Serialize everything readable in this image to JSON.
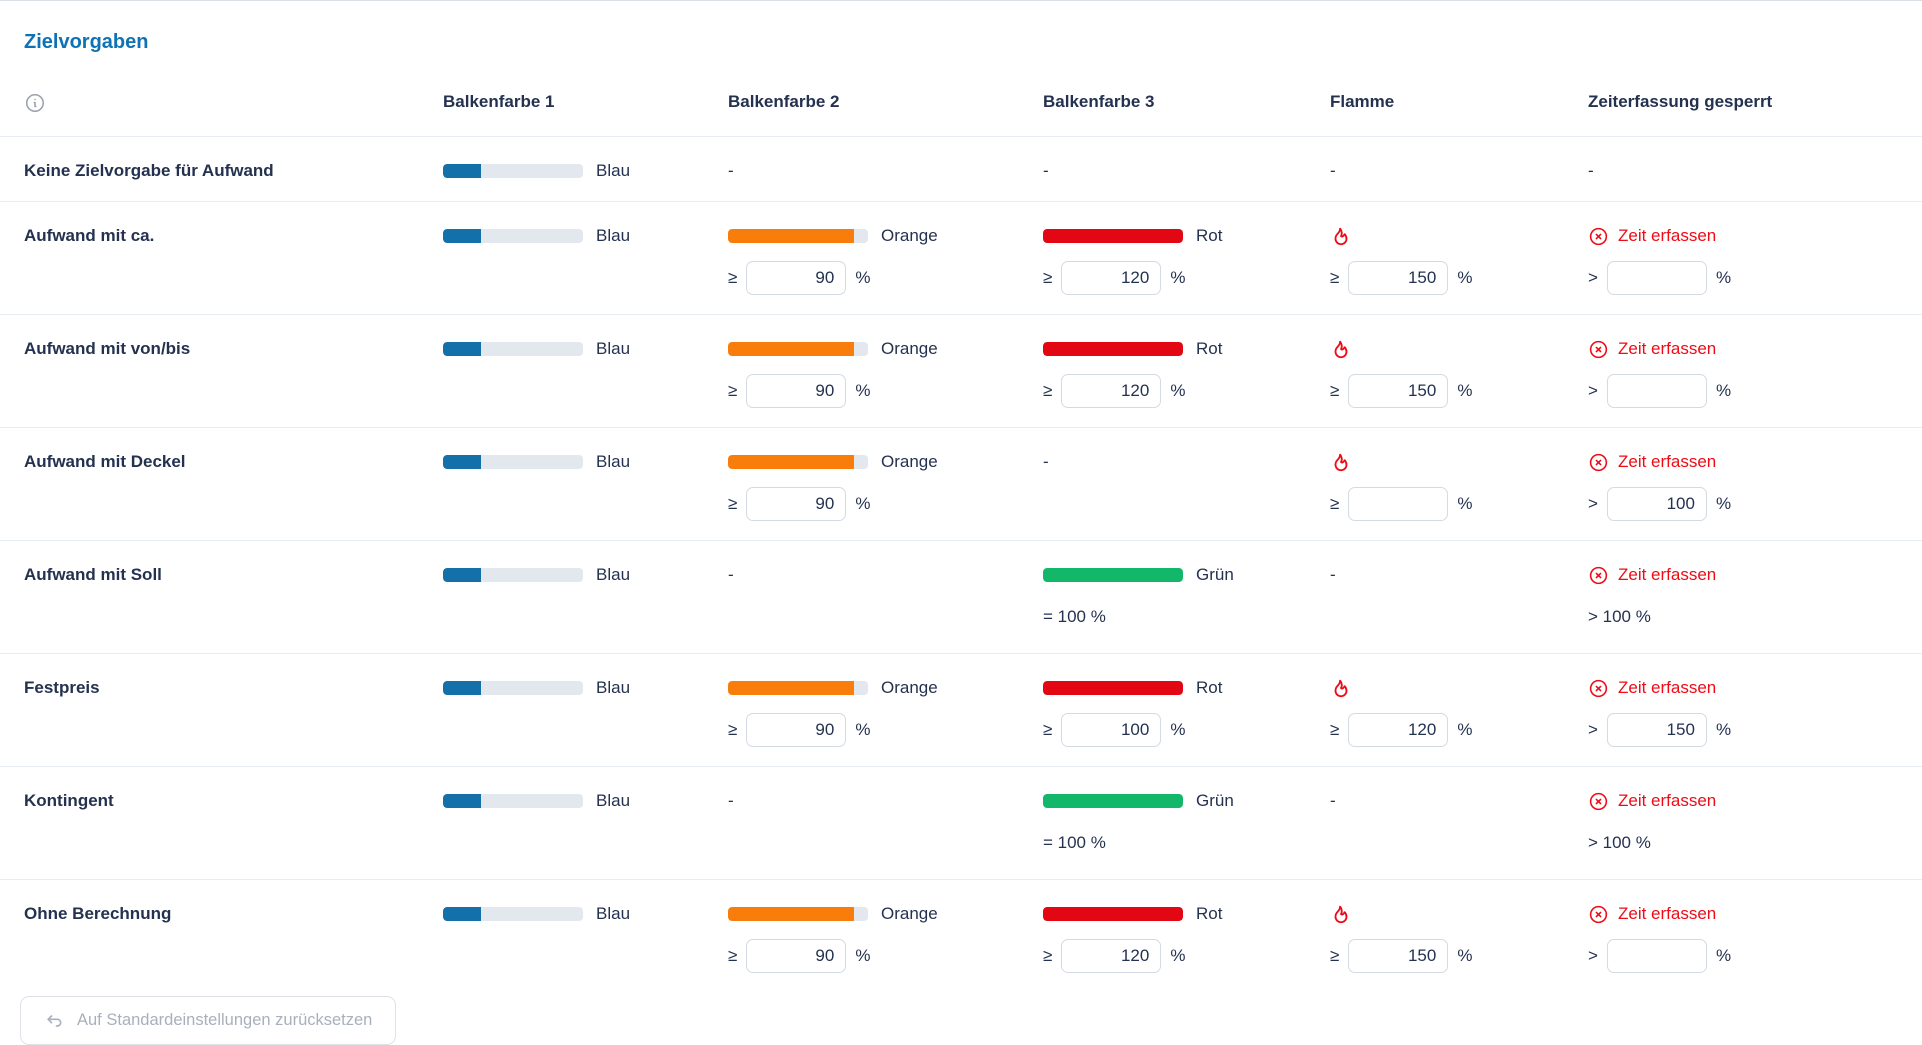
{
  "page": {
    "title": "Zielvorgaben"
  },
  "icons": {
    "info": "info-circle-icon",
    "flame": "flame-icon",
    "time_locked": "circle-x-icon",
    "reset": "undo-arrow-icon"
  },
  "colors": {
    "title_blue": "#0f72b4",
    "text": "#243250",
    "red_text": "#ee0b16",
    "bar_track": "#e3e8ef",
    "bar_blue": "#1470a9",
    "bar_orange": "#f87d0b",
    "bar_red": "#e30613",
    "bar_green": "#12b76a"
  },
  "bars": {
    "blue": {
      "label": "Blau",
      "fill": 0.27
    },
    "orange": {
      "label": "Orange",
      "fill": 0.9
    },
    "red": {
      "label": "Rot",
      "fill": 1
    },
    "green": {
      "label": "Grün",
      "fill": 1
    }
  },
  "table": {
    "headers": [
      "Balkenfarbe 1",
      "Balkenfarbe 2",
      "Balkenfarbe 3",
      "Flamme",
      "Zeiterfassung gesperrt"
    ],
    "time_locked_label": "Zeit erfassen",
    "percent_sign": "%",
    "dash": "-",
    "rows": [
      {
        "name": "Keine Zielvorgabe für Aufwand",
        "bar1": {
          "color": "blue"
        },
        "bar2": null,
        "bar3": null,
        "flame": null,
        "time": null
      },
      {
        "name": "Aufwand mit ca.",
        "bar1": {
          "color": "blue"
        },
        "bar2": {
          "color": "orange",
          "op": "≥",
          "value": "90",
          "input": true
        },
        "bar3": {
          "color": "red",
          "op": "≥",
          "value": "120",
          "input": true
        },
        "flame": {
          "op": "≥",
          "value": "150",
          "input": true
        },
        "time": {
          "op": ">",
          "value": "",
          "input": true
        }
      },
      {
        "name": "Aufwand mit von/bis",
        "bar1": {
          "color": "blue"
        },
        "bar2": {
          "color": "orange",
          "op": "≥",
          "value": "90",
          "input": true
        },
        "bar3": {
          "color": "red",
          "op": "≥",
          "value": "120",
          "input": true
        },
        "flame": {
          "op": "≥",
          "value": "150",
          "input": true
        },
        "time": {
          "op": ">",
          "value": "",
          "input": true
        }
      },
      {
        "name": "Aufwand mit Deckel",
        "bar1": {
          "color": "blue"
        },
        "bar2": {
          "color": "orange",
          "op": "≥",
          "value": "90",
          "input": true
        },
        "bar3": null,
        "flame": {
          "op": "≥",
          "value": "",
          "input": true
        },
        "time": {
          "op": ">",
          "value": "100",
          "input": true
        }
      },
      {
        "name": "Aufwand mit Soll",
        "bar1": {
          "color": "blue"
        },
        "bar2": null,
        "bar3": {
          "color": "green",
          "static": "= 100 %"
        },
        "flame": null,
        "time": {
          "static": "> 100 %"
        }
      },
      {
        "name": "Festpreis",
        "bar1": {
          "color": "blue"
        },
        "bar2": {
          "color": "orange",
          "op": "≥",
          "value": "90",
          "input": true
        },
        "bar3": {
          "color": "red",
          "op": "≥",
          "value": "100",
          "input": true
        },
        "flame": {
          "op": "≥",
          "value": "120",
          "input": true
        },
        "time": {
          "op": ">",
          "value": "150",
          "input": true
        }
      },
      {
        "name": "Kontingent",
        "bar1": {
          "color": "blue"
        },
        "bar2": null,
        "bar3": {
          "color": "green",
          "static": "= 100 %"
        },
        "flame": null,
        "time": {
          "static": "> 100 %"
        }
      },
      {
        "name": "Ohne Berechnung",
        "bar1": {
          "color": "blue"
        },
        "bar2": {
          "color": "orange",
          "op": "≥",
          "value": "90",
          "input": true
        },
        "bar3": {
          "color": "red",
          "op": "≥",
          "value": "120",
          "input": true
        },
        "flame": {
          "op": "≥",
          "value": "150",
          "input": true
        },
        "time": {
          "op": ">",
          "value": "",
          "input": true
        }
      }
    ]
  },
  "reset_button": {
    "label": "Auf Standardeinstellungen zurücksetzen"
  }
}
